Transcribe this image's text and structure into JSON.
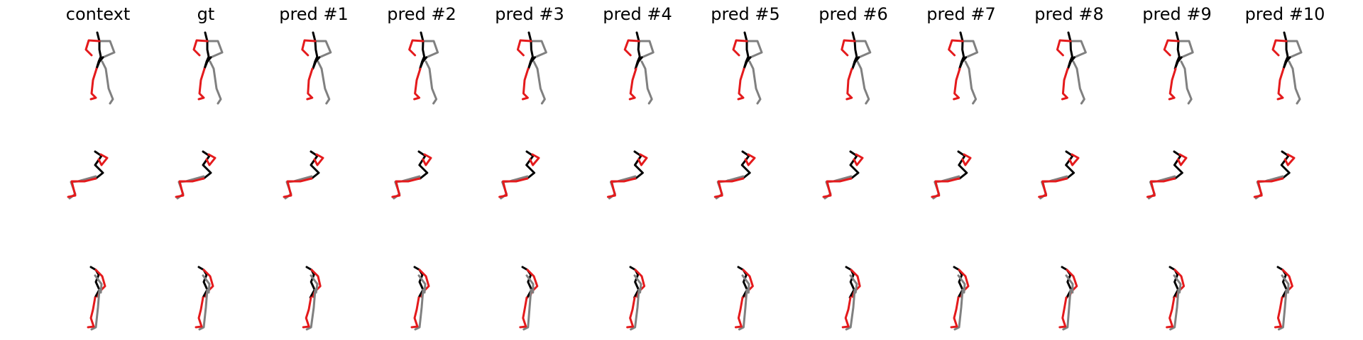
{
  "figure": {
    "columns": [
      "context",
      "gt",
      "pred #1",
      "pred #2",
      "pred #3",
      "pred #4",
      "pred #5",
      "pred #6",
      "pred #7",
      "pred #8",
      "pred #9",
      "pred #10"
    ]
  },
  "colors": {
    "torso_head": "#000000",
    "left_limbs": "#e41a1c",
    "right_limbs": "#808080"
  }
}
